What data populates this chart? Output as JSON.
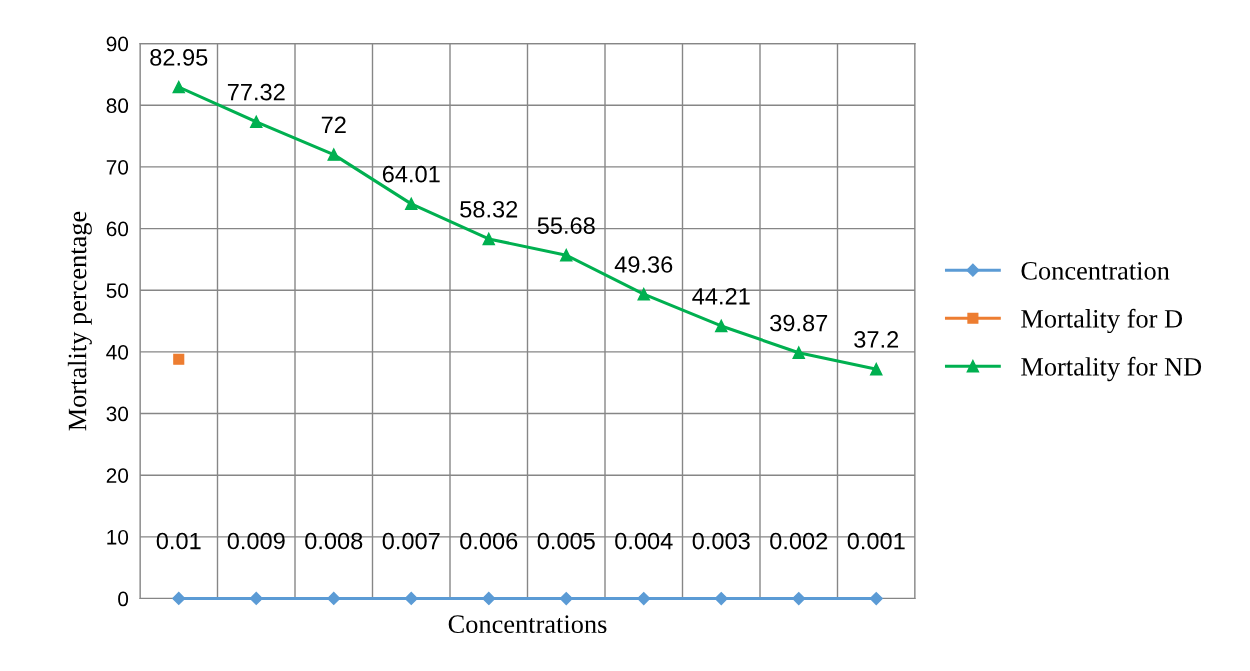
{
  "chart_data": {
    "type": "line",
    "xlabel": "Concentrations",
    "ylabel": "Mortality percentage",
    "categories": [
      null,
      null,
      null,
      null,
      null,
      null,
      null,
      null,
      null,
      null
    ],
    "series": [
      {
        "name": "Concentration",
        "color": "#5b9bd5",
        "marker": "diamond",
        "values": [
          0.01,
          0.009,
          0.008,
          0.007,
          0.006,
          0.005,
          0.004,
          0.003,
          0.002,
          0.001
        ],
        "value_labels": [
          "0.01",
          "0.009",
          "0.008",
          "0.007",
          "0.006",
          "0.005",
          "0.004",
          "0.003",
          "0.002",
          "0.001"
        ]
      },
      {
        "name": "Mortality for D",
        "color": "#ed7d31",
        "marker": "square",
        "values": [
          38.8,
          null,
          null,
          null,
          null,
          null,
          null,
          null,
          null,
          null
        ]
      },
      {
        "name": "Mortality for ND",
        "color": "#00b050",
        "marker": "triangle",
        "values": [
          82.95,
          77.32,
          72,
          64.01,
          58.32,
          55.68,
          49.36,
          44.21,
          39.87,
          37.2
        ],
        "value_labels": [
          "82.95",
          "77.32",
          "72",
          "64.01",
          "58.32",
          "55.68",
          "49.36",
          "44.21",
          "39.87",
          "37.2"
        ]
      }
    ],
    "ylim": [
      0,
      90
    ],
    "yticks": [
      0,
      10,
      20,
      30,
      40,
      50,
      60,
      70,
      80,
      90
    ],
    "grid": true,
    "legend": "right",
    "line_style": "solid"
  }
}
